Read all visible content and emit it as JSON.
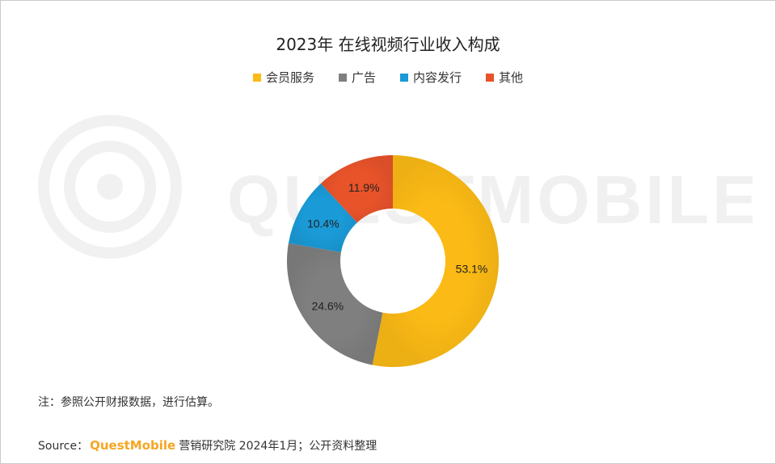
{
  "chart_data": {
    "type": "pie",
    "title": "2023年 在线视频行业收入构成",
    "categories": [
      "会员服务",
      "广告",
      "内容发行",
      "其他"
    ],
    "values": [
      53.1,
      24.6,
      10.4,
      11.9
    ],
    "value_labels": [
      "53.1%",
      "24.6%",
      "10.4%",
      "11.9%"
    ],
    "colors": [
      "#fbba15",
      "#7f7f7f",
      "#1a9ad6",
      "#e8532a"
    ],
    "legend_position": "top",
    "donut": true
  },
  "watermark": {
    "text": "QUESTMOBILE"
  },
  "footer": {
    "note": "注：参照公开财报数据，进行估算。",
    "source_prefix": "Source：",
    "source_brand": "QuestMobile",
    "source_suffix": "营销研究院 2024年1月；公开资料整理"
  }
}
